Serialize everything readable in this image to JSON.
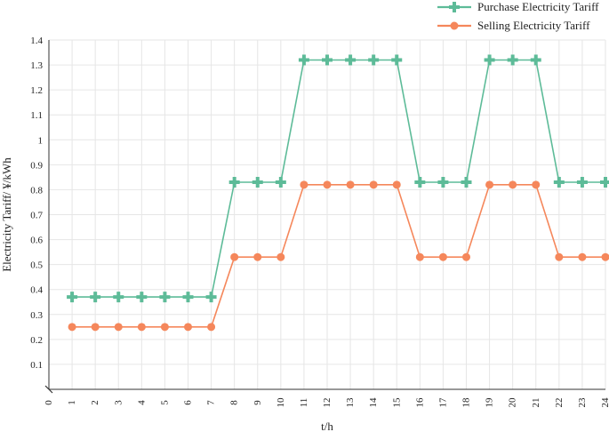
{
  "chart_data": {
    "type": "line",
    "xlabel": "t/h",
    "ylabel": "Electricity Tariff/ ¥/kWh",
    "xlim": [
      0,
      24
    ],
    "ylim": [
      0,
      1.4
    ],
    "x_ticks": [
      "0",
      "1",
      "2",
      "3",
      "4",
      "5",
      "6",
      "7",
      "8",
      "9",
      "10",
      "11",
      "12",
      "13",
      "14",
      "15",
      "16",
      "17",
      "18",
      "19",
      "20",
      "21",
      "22",
      "23",
      "24"
    ],
    "y_ticks": [
      "0.1",
      "0.2",
      "0.3",
      "0.4",
      "0.5",
      "0.6",
      "0.7",
      "0.8",
      "0.9",
      "1",
      "1.1",
      "1.2",
      "1.3",
      "1.4"
    ],
    "grid": true,
    "legend_position": "top-right",
    "x": [
      1,
      2,
      3,
      4,
      5,
      6,
      7,
      8,
      9,
      10,
      11,
      12,
      13,
      14,
      15,
      16,
      17,
      18,
      19,
      20,
      21,
      22,
      23,
      24
    ],
    "series": [
      {
        "name": "Purchase Electricity Tariff",
        "color": "#5dbb98",
        "marker": "plus",
        "values": [
          0.37,
          0.37,
          0.37,
          0.37,
          0.37,
          0.37,
          0.37,
          0.83,
          0.83,
          0.83,
          1.32,
          1.32,
          1.32,
          1.32,
          1.32,
          0.83,
          0.83,
          0.83,
          1.32,
          1.32,
          1.32,
          0.83,
          0.83,
          0.83
        ]
      },
      {
        "name": "Selling Electricity Tariff",
        "color": "#f5875b",
        "marker": "circle",
        "values": [
          0.25,
          0.25,
          0.25,
          0.25,
          0.25,
          0.25,
          0.25,
          0.53,
          0.53,
          0.53,
          0.82,
          0.82,
          0.82,
          0.82,
          0.82,
          0.53,
          0.53,
          0.53,
          0.82,
          0.82,
          0.82,
          0.53,
          0.53,
          0.53
        ]
      }
    ]
  }
}
